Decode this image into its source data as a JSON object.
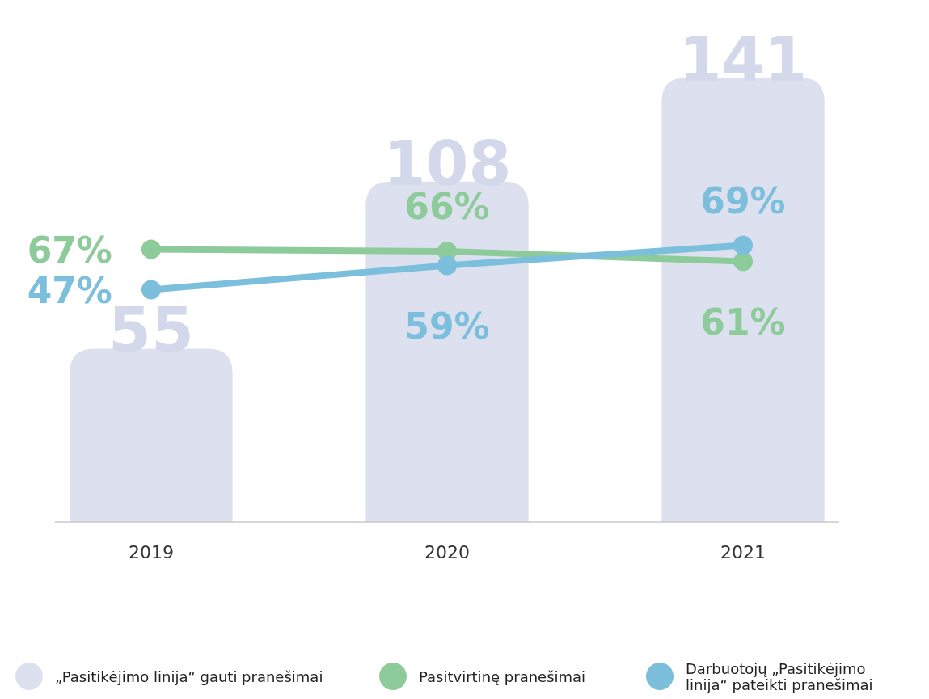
{
  "chart_data": {
    "type": "bar",
    "categories": [
      "2019",
      "2020",
      "2021"
    ],
    "series": [
      {
        "name": "„Pasitikėjimo linija“ gauti pranešimai",
        "color": "#dde1ef",
        "values": [
          55,
          108,
          141
        ]
      },
      {
        "type": "line",
        "axis": "y2",
        "name": "Pasitvirtinę pranešimai",
        "color": "#8ecb9b",
        "values": [
          67,
          66,
          61
        ],
        "value_labels": [
          "67%",
          "66%",
          "61%"
        ]
      },
      {
        "type": "line",
        "axis": "y2",
        "name": "Darbuotojų „Pasitikėjimo linija“ pateikti pranešimai",
        "color": "#7bbfdc",
        "values": [
          47,
          59,
          69
        ],
        "value_labels": [
          "47%",
          "59%",
          "69%"
        ]
      }
    ],
    "data_labels": true,
    "marker": "circle",
    "legend": "bottom",
    "tick_labels": "x"
  }
}
